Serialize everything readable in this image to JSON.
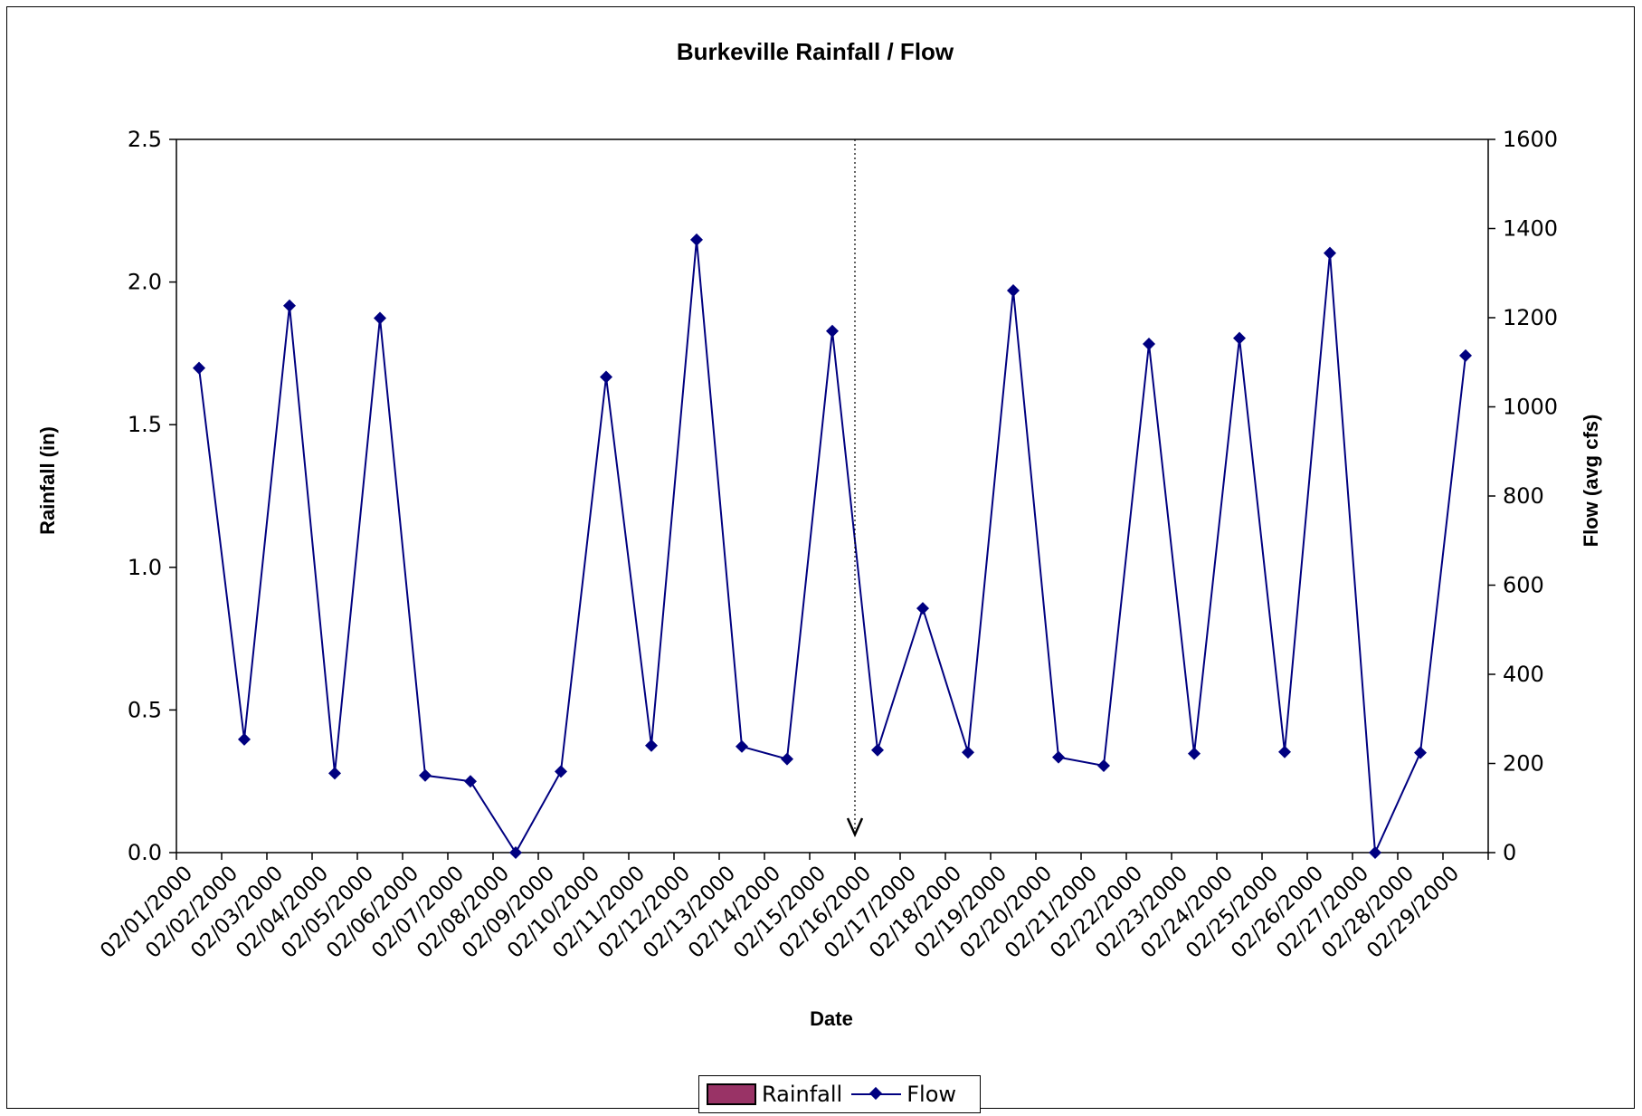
{
  "chart_data": {
    "type": "line",
    "title": "Burkeville Rainfall / Flow",
    "xlabel": "Date",
    "ylabel": "Rainfall (in)",
    "y2label": "Flow (avg cfs)",
    "categories": [
      "02/01/2000",
      "02/02/2000",
      "02/03/2000",
      "02/04/2000",
      "02/05/2000",
      "02/06/2000",
      "02/07/2000",
      "02/08/2000",
      "02/09/2000",
      "02/10/2000",
      "02/11/2000",
      "02/12/2000",
      "02/13/2000",
      "02/14/2000",
      "02/15/2000",
      "02/16/2000",
      "02/17/2000",
      "02/18/2000",
      "02/19/2000",
      "02/20/2000",
      "02/21/2000",
      "02/22/2000",
      "02/23/2000",
      "02/24/2000",
      "02/25/2000",
      "02/26/2000",
      "02/27/2000",
      "02/28/2000",
      "02/29/2000"
    ],
    "ylim": [
      0,
      2.5
    ],
    "y2lim": [
      0,
      1600
    ],
    "yticks": [
      "0.0",
      "0.5",
      "1.0",
      "1.5",
      "2.0",
      "2.5"
    ],
    "y2ticks": [
      "0",
      "200",
      "400",
      "600",
      "800",
      "1000",
      "1200",
      "1400",
      "1600"
    ],
    "series": [
      {
        "name": "Rainfall",
        "type": "bar",
        "axis": "left",
        "color": "#993366",
        "values": [
          0,
          0,
          0,
          0,
          0,
          0,
          0,
          0,
          0,
          0,
          0,
          0,
          0,
          0,
          0,
          0,
          0,
          0,
          0,
          0,
          0,
          0,
          0,
          0,
          0,
          0,
          0,
          0,
          0
        ]
      },
      {
        "name": "Flow",
        "type": "line",
        "axis": "right",
        "color": "#000080",
        "marker": "diamond",
        "values": [
          1087,
          254,
          1227,
          178,
          1199,
          173,
          160,
          0,
          182,
          1067,
          240,
          1375,
          238,
          210,
          1170,
          230,
          548,
          225,
          1261,
          214,
          195,
          1141,
          222,
          1154,
          226,
          1345,
          0,
          224,
          1115
        ]
      }
    ],
    "annotation": {
      "type": "dotted-arrow",
      "between": [
        "02/15/2000",
        "02/16/2000"
      ]
    },
    "legend_position": "bottom",
    "grid": false
  }
}
